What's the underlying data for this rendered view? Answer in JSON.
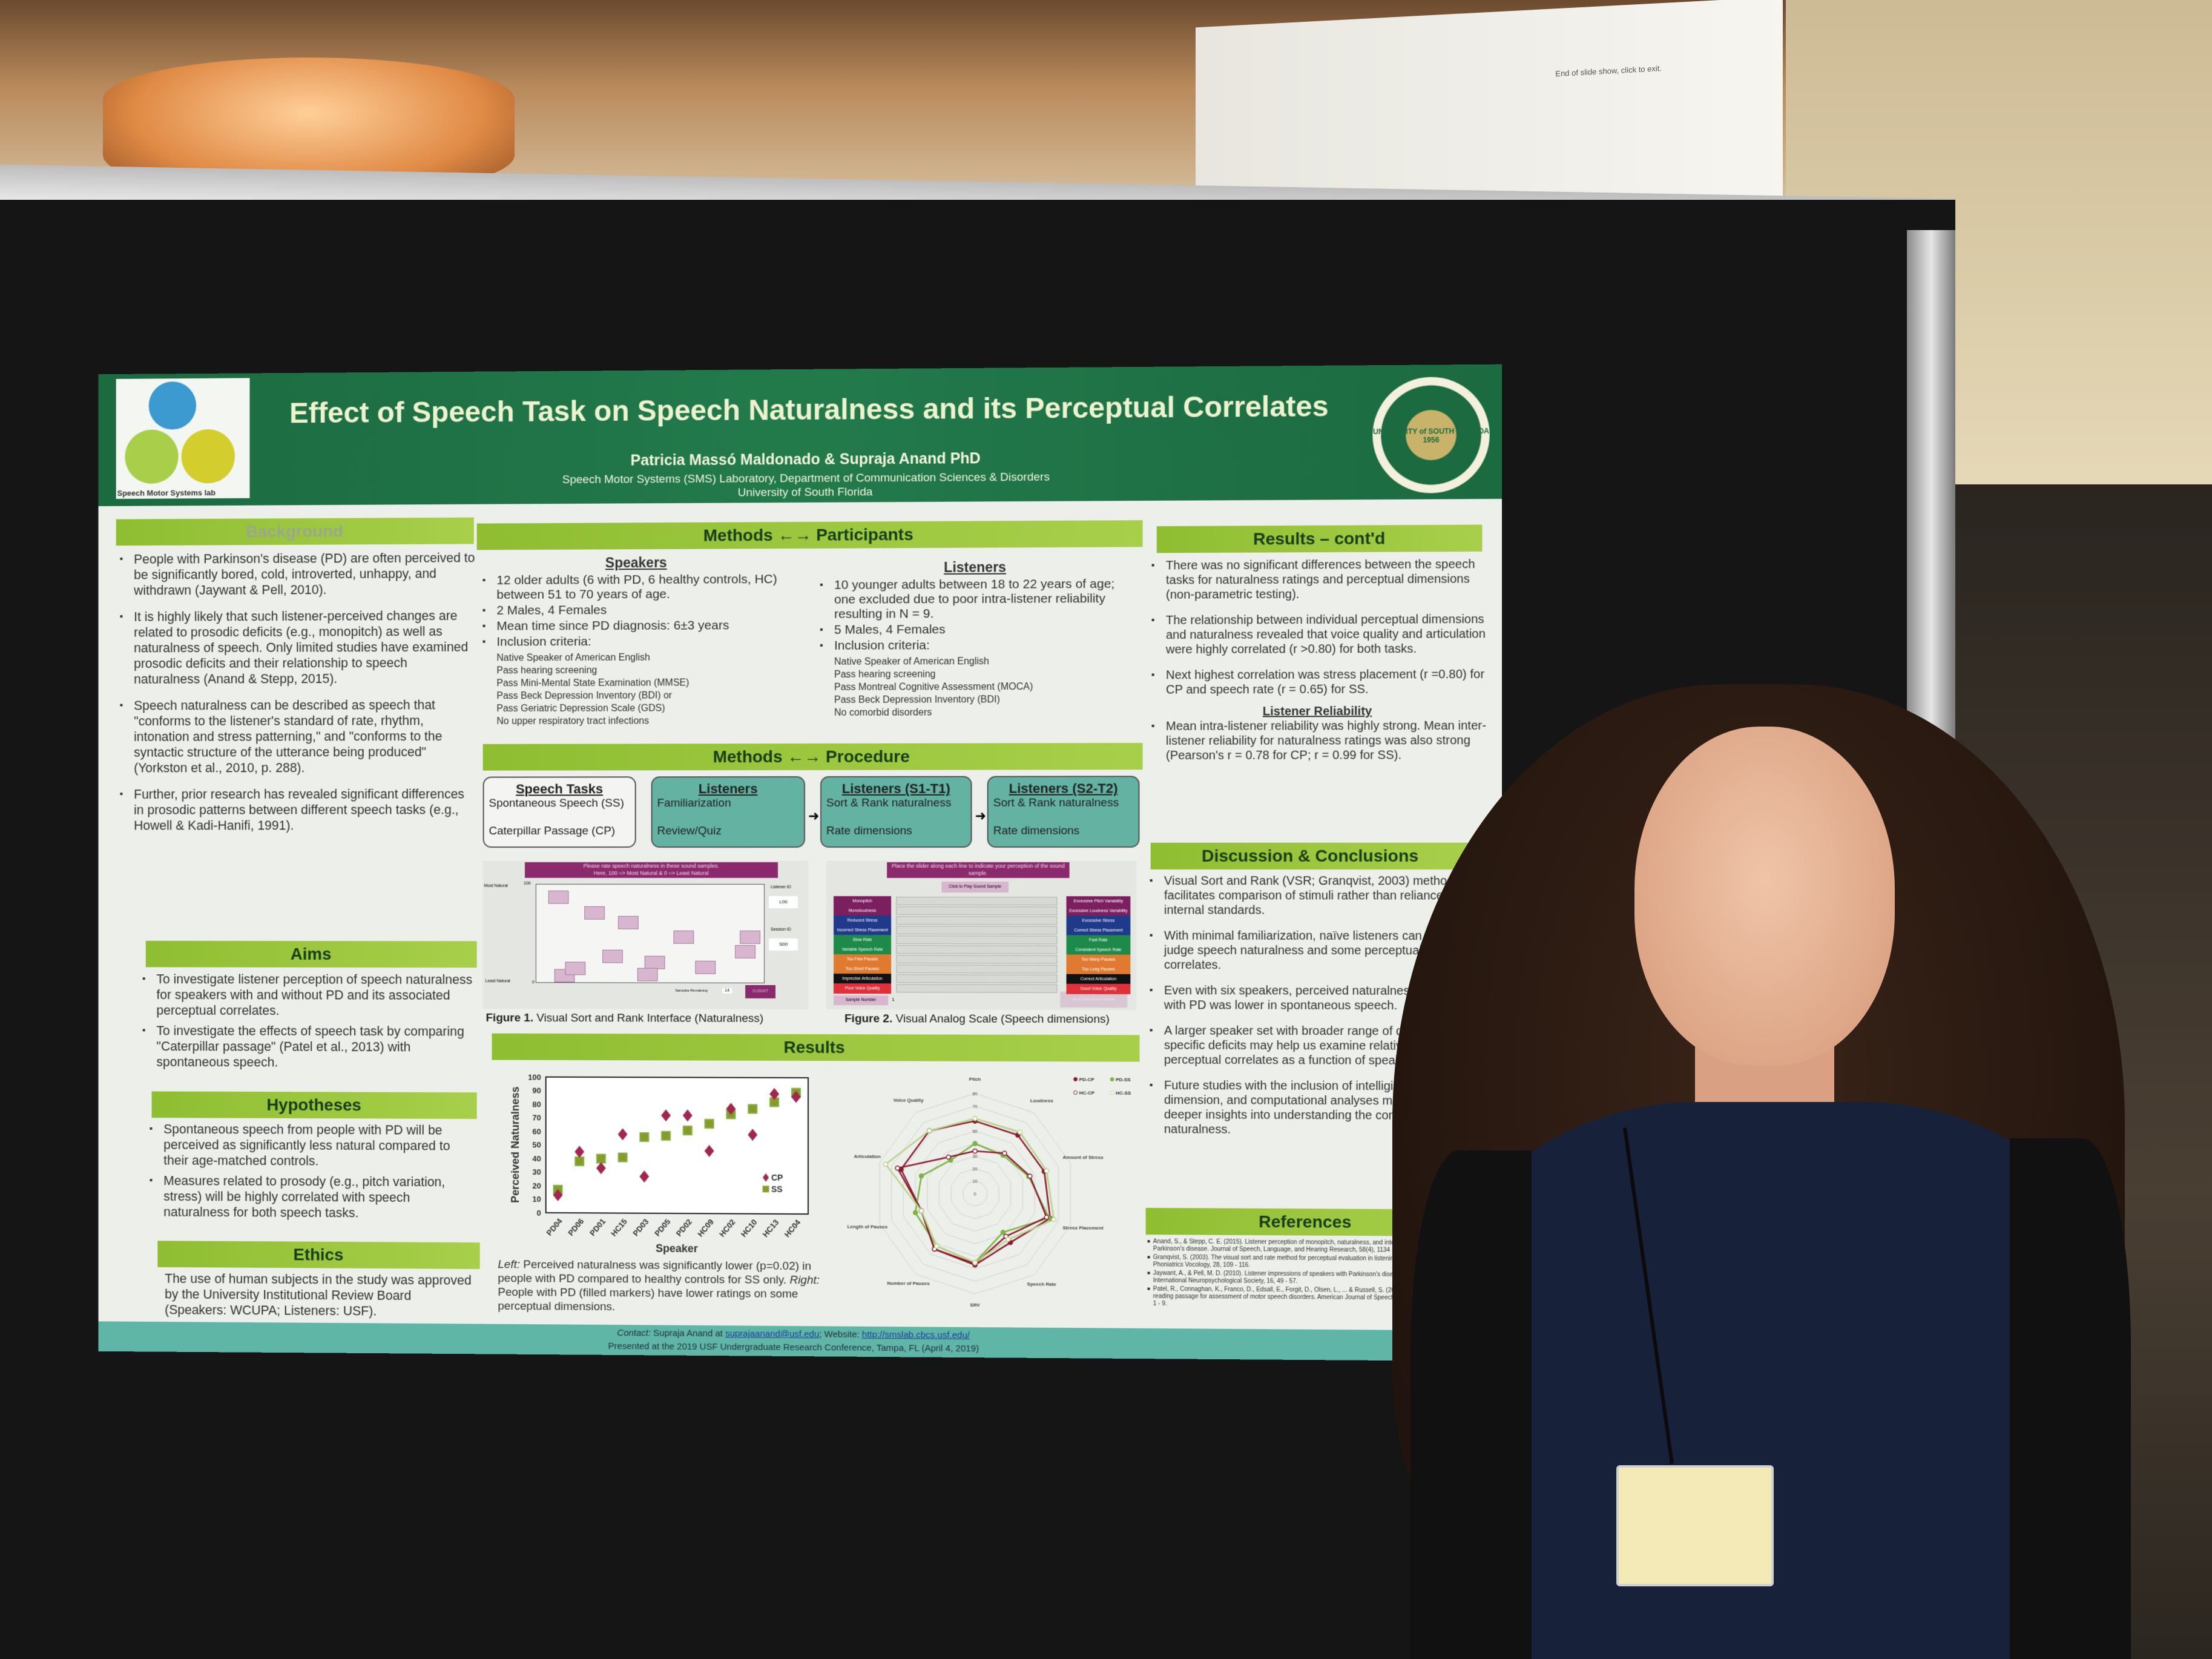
{
  "scene": {
    "projector_screen_text": "End of slide show, click to exit."
  },
  "colors": {
    "header_green": "#1f6e46",
    "section_bar": "#9cc63c",
    "footer_teal": "#5fb5a6",
    "procedure_box": "#63b2a2",
    "cp_marker": "#a0284f",
    "ss_marker": "#8db83a"
  },
  "poster": {
    "logo_text": "Speech Motor Systems lab",
    "seal_text": "UNIVERSITY of SOUTH FLORIDA 1956",
    "title": "Effect of Speech Task on Speech Naturalness and its Perceptual Correlates",
    "authors": "Patricia Massó Maldonado & Supraja Anand PhD",
    "affiliation1": "Speech Motor Systems (SMS) Laboratory, Department of Communication Sciences & Disorders",
    "affiliation2": "University of South Florida"
  },
  "background": {
    "heading": "Background",
    "items": [
      "People with Parkinson's disease (PD) are often perceived to be significantly bored, cold, introverted, unhappy, and withdrawn (Jaywant & Pell, 2010).",
      "It is highly likely that such listener-perceived changes are related to prosodic deficits (e.g., monopitch) as well as naturalness of speech. Only limited studies have examined prosodic deficits and their relationship to speech naturalness (Anand & Stepp, 2015).",
      "Speech naturalness can be described as speech that \"conforms to the listener's standard of rate, rhythm, intonation and stress patterning,\" and \"conforms to the syntactic structure of the utterance being produced\" (Yorkston et al., 2010, p. 288).",
      "Further, prior research has revealed significant differences in prosodic patterns between different speech tasks (e.g., Howell & Kadi-Hanifi, 1991)."
    ]
  },
  "aims": {
    "heading": "Aims",
    "items": [
      "To investigate listener perception of speech naturalness for speakers with and without PD and its associated perceptual correlates.",
      "To investigate the effects of speech task by comparing \"Caterpillar passage\" (Patel et al., 2013) with spontaneous speech."
    ]
  },
  "hypotheses": {
    "heading": "Hypotheses",
    "items": [
      "Spontaneous speech from people with PD will be perceived as significantly less natural compared to their age-matched controls.",
      "Measures related to prosody (e.g., pitch variation, stress) will be highly correlated with speech naturalness for both speech tasks."
    ]
  },
  "ethics": {
    "heading": "Ethics",
    "text": "The use of human subjects in the study was approved by the University Institutional Review Board (Speakers: WCUPA; Listeners: USF)."
  },
  "participants": {
    "heading": "Methods ←→ Participants",
    "speakers": {
      "heading": "Speakers",
      "items": [
        "12 older adults (6 with PD, 6 healthy controls, HC) between 51 to 70 years of age.",
        "2 Males, 4 Females",
        "Mean time since PD diagnosis: 6±3 years",
        "Inclusion criteria:"
      ],
      "criteria": [
        "Native Speaker of American English",
        "Pass hearing screening",
        "Pass Mini-Mental State Examination (MMSE)",
        "Pass Beck Depression Inventory (BDI) or",
        "Pass Geriatric Depression Scale (GDS)",
        "No upper respiratory tract infections"
      ]
    },
    "listeners": {
      "heading": "Listeners",
      "items": [
        "10 younger adults between 18 to 22 years of age; one excluded due to poor intra-listener reliability resulting in N = 9.",
        "5 Males, 4 Females",
        "Inclusion criteria:"
      ],
      "criteria": [
        "Native Speaker of American English",
        "Pass hearing screening",
        "Pass Montreal Cognitive Assessment (MOCA)",
        "Pass Beck Depression Inventory (BDI)",
        "No comorbid disorders"
      ]
    }
  },
  "procedure": {
    "heading": "Methods ←→ Procedure",
    "boxes": [
      {
        "title": "Speech Tasks",
        "line1": "Spontaneous Speech (SS)",
        "line2": "Caterpillar Passage (CP)"
      },
      {
        "title": "Listeners",
        "line1": "Familiarization",
        "line2": "Review/Quiz"
      },
      {
        "title": "Listeners (S1-T1)",
        "line1": "Sort & Rank naturalness",
        "line2": "Rate dimensions"
      },
      {
        "title": "Listeners (S2-T2)",
        "line1": "Sort & Rank naturalness",
        "line2": "Rate dimensions"
      }
    ]
  },
  "figure1": {
    "header_line1": "Please rate speech naturalness in these sound samples.",
    "header_line2": "Here, 100 => Most Natural & 0 => Least Natural",
    "most_natural": "Most Natural",
    "least_natural": "Least Natural",
    "top_value": "100",
    "bottom_value": "0",
    "listener_id_label": "Listener ID",
    "listener_id": "L00",
    "session_id_label": "Session ID",
    "session_id": "S00",
    "samples_remaining_label": "Samples Remaining",
    "samples_remaining": "14",
    "submit": "SUBMIT",
    "caption_bold": "Figure 1.",
    "caption": " Visual Sort and Rank Interface (Naturalness)"
  },
  "figure2": {
    "header_line1": "Place the slider along each line to indicate your perception of the sound sample.",
    "header_line2": "Use the definitions if needed.",
    "play_button": "Click to Play Sound Sample",
    "left_labels": [
      "Monopitch",
      "Monoloudness",
      "Reduced Stress",
      "Incorrect Stress Placement",
      "Slow Rate",
      "Variable Speech Rate",
      "Too Few Pauses",
      "Too Short Pauses",
      "Imprecise Articulation",
      "Poor Voice Quality"
    ],
    "right_labels": [
      "Excessive Pitch Variability",
      "Excessive Loudness Variability",
      "Excessive Stress",
      "Correct Stress Placement",
      "Fast Rate",
      "Consistent Speech Rate",
      "Too Many Pauses",
      "Too Long Pauses",
      "Correct Articulation",
      "Good Voice Quality"
    ],
    "label_colors": [
      "#7b1f5e",
      "#7b1f5e",
      "#1f3a8a",
      "#1f3a8a",
      "#1e8a4a",
      "#1e8a4a",
      "#e07a30",
      "#e07a30",
      "#111111",
      "#e0303a"
    ],
    "sample_number_label": "Sample Number",
    "sample_number": "1",
    "next_button": "Go to Next Sound Sample",
    "caption_bold": "Figure 2.",
    "caption": " Visual Analog Scale (Speech dimensions)"
  },
  "results": {
    "heading": "Results",
    "caption_left_label": "Left:",
    "caption_left": " Perceived naturalness was significantly lower (p=0.02) in people with PD compared to healthy controls for SS only. ",
    "caption_right_label": "Right:",
    "caption_right": " People with PD (filled markers) have lower ratings on some perceptual dimensions."
  },
  "chart_data": [
    {
      "type": "scatter",
      "xlabel": "Speaker",
      "ylabel": "Perceived Naturalness",
      "categories": [
        "PD04",
        "PD06",
        "PD01",
        "HC15",
        "PD03",
        "PD05",
        "PD02",
        "HC09",
        "HC02",
        "HC10",
        "HC13",
        "HC04"
      ],
      "ylim": [
        0,
        100
      ],
      "yticks": [
        0,
        10,
        20,
        30,
        40,
        50,
        60,
        70,
        80,
        90,
        100
      ],
      "legend": "bottom-right",
      "series": [
        {
          "name": "CP",
          "marker": "diamond",
          "values": [
            13,
            45,
            33,
            58,
            27,
            72,
            72,
            46,
            77,
            58,
            88,
            86
          ]
        },
        {
          "name": "SS",
          "marker": "square",
          "values": [
            17,
            38,
            40,
            41,
            56,
            57,
            61,
            66,
            73,
            77,
            82,
            89
          ]
        }
      ]
    },
    {
      "type": "radar",
      "axes": [
        "Pitch",
        "Loudness",
        "Amount of Stress",
        "Stress Placement",
        "Speech Rate",
        "SRV",
        "Number of Pauses",
        "Length of Pauses",
        "Articulation",
        "Voice Quality"
      ],
      "rlim": [
        0,
        80
      ],
      "rticks": [
        0,
        10,
        20,
        30,
        40,
        50,
        60,
        70,
        80
      ],
      "legend": "top-right",
      "series": [
        {
          "name": "PD-CP",
          "filled": true,
          "color": "#8b1a2e",
          "values": [
            58,
            58,
            58,
            63,
            48,
            57,
            55,
            45,
            62,
            62
          ]
        },
        {
          "name": "PD-SS",
          "filled": true,
          "color": "#7cb342",
          "values": [
            40,
            38,
            45,
            62,
            38,
            55,
            52,
            50,
            45,
            33
          ]
        },
        {
          "name": "HC-CP",
          "filled": false,
          "color": "#8b1a2e",
          "values": [
            34,
            40,
            46,
            60,
            42,
            56,
            55,
            45,
            65,
            36
          ]
        },
        {
          "name": "HC-SS",
          "filled": false,
          "color": "#b9d38a",
          "values": [
            60,
            61,
            60,
            66,
            45,
            55,
            52,
            45,
            75,
            62
          ]
        }
      ]
    }
  ],
  "results_contd": {
    "heading": "Results – cont'd",
    "items": [
      "There was no significant differences between the speech tasks for naturalness ratings and perceptual dimensions (non-parametric testing).",
      "The relationship between individual perceptual dimensions and naturalness revealed that voice quality and articulation were highly correlated (r >0.80) for both tasks.",
      "Next highest correlation was stress placement (r =0.80) for CP and speech rate (r = 0.65) for SS."
    ],
    "reliability_heading": "Listener Reliability",
    "reliability_item": "Mean intra-listener reliability was highly strong. Mean inter-listener reliability for naturalness ratings was also strong (Pearson's r = 0.78 for CP; r = 0.99 for SS)."
  },
  "discussion": {
    "heading": "Discussion & Conclusions",
    "items": [
      "Visual Sort and Rank (VSR; Granqvist, 2003) method facilitates comparison of stimuli rather than reliance on internal standards.",
      "With minimal familiarization, naïve listeners can reliably judge speech naturalness and some perceptual correlates.",
      "Even with six speakers, perceived naturalness of people with PD was lower in spontaneous speech.",
      "A larger speaker set with broader range of dimension-specific deficits may help us examine relative weighting of perceptual correlates as a function of speaker group/task.",
      "Future studies with the inclusion of intelligibility dimension, and computational analyses may provide deeper insights into understanding the concept of speech naturalness."
    ]
  },
  "references": {
    "heading": "References",
    "items": [
      "Anand, S., & Stepp, C. E. (2015). Listener perception of monopitch, naturalness, and intelligibility for speakers with Parkinson's disease. Journal of Speech, Language, and Hearing Research, 58(4), 1134 - 1144.",
      "Granqvist, S. (2003). The visual sort and rate method for perceptual evaluation in listening tests. Logopedics Phoniatrics Vocology, 28, 109 - 116.",
      "Jaywant, A., & Pell, M. D. (2010). Listener impressions of speakers with Parkinson's disease. Journal of the International Neuropsychological Society, 16, 49 - 57.",
      "Patel, R., Connaghan, K., Franco, D., Edsall, E., Forgit, D., Olsen, L., ... & Russell, S. (2013). \"The Caterpillar\": A novel reading passage for assessment of motor speech disorders. American Journal of Speech-Language Pathology, 22(1), 1 - 9."
    ]
  },
  "footer": {
    "contact_label": "Contact:",
    "contact_text": " Supraja Anand at ",
    "email": "suprajaanand@usf.edu",
    "website_label": "; Website: ",
    "website": "http://smslab.cbcs.usf.edu/",
    "presented": "Presented at the 2019 USF Undergraduate Research Conference, Tampa, FL (April 4, 2019)"
  }
}
